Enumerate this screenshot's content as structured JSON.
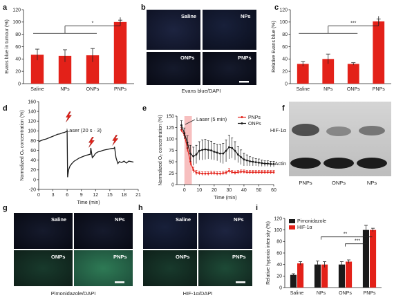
{
  "colors": {
    "red": "#e32119",
    "black": "#1a1a1a",
    "laser_band": "#f4a9a9"
  },
  "panels": {
    "a": {
      "label": "a"
    },
    "b": {
      "label": "b",
      "tiles": [
        "Saline",
        "NPs",
        "ONPs",
        "PNPs"
      ],
      "caption": "Evans blue/DAPI"
    },
    "c": {
      "label": "c"
    },
    "d": {
      "label": "d",
      "annotation": "Laser (20 s · 3)"
    },
    "e": {
      "label": "e",
      "annotation": "Laser (5 min)"
    },
    "f": {
      "label": "f",
      "rows": [
        "HIF-1α",
        "Actin"
      ],
      "columns": [
        "PNPs",
        "ONPs",
        "NPs"
      ]
    },
    "g": {
      "label": "g",
      "tiles": [
        "Saline",
        "NPs",
        "ONPs",
        "PNPs"
      ],
      "caption": "Pimonidazole/DAPI"
    },
    "h": {
      "label": "h",
      "tiles": [
        "Saline",
        "NPs",
        "ONPs",
        "PNPs"
      ],
      "caption": "HIF-1α/DAPI"
    },
    "i": {
      "label": "i"
    }
  },
  "chart_data": [
    {
      "id": "a",
      "type": "bar",
      "categories": [
        "Saline",
        "NPs",
        "ONPs",
        "PNPs"
      ],
      "values": [
        47,
        45,
        46,
        100
      ],
      "errors": [
        9,
        10,
        11,
        3
      ],
      "ylabel": "Evans blue in tumour (%)",
      "ylim": [
        0,
        120
      ],
      "yticks": [
        0,
        20,
        40,
        60,
        80,
        100,
        120
      ],
      "significance": "*"
    },
    {
      "id": "c",
      "type": "bar",
      "categories": [
        "Saline",
        "NPs",
        "ONPs",
        "PNPs"
      ],
      "values": [
        32,
        40,
        32,
        101
      ],
      "errors": [
        4,
        8,
        2,
        4
      ],
      "ylabel": "Relative Evans blue (%)",
      "ylim": [
        0,
        120
      ],
      "yticks": [
        0,
        20,
        40,
        60,
        80,
        100,
        120
      ],
      "significance": "***"
    },
    {
      "id": "d",
      "type": "line",
      "xlabel": "Time (min)",
      "ylabel": "Normalized O₂ concentration (%)",
      "xlim": [
        0,
        21
      ],
      "ylim": [
        -20,
        160
      ],
      "xticks": [
        0,
        3,
        6,
        9,
        12,
        15,
        18,
        21
      ],
      "yticks": [
        -20,
        0,
        20,
        40,
        60,
        80,
        100,
        120,
        140,
        160
      ],
      "laser_times": [
        6.2,
        11.0,
        16.0
      ],
      "series": [
        {
          "x": [
            0,
            0.5,
            1,
            1.5,
            2,
            2.5,
            3,
            3.5,
            4,
            4.5,
            5,
            5.5,
            5.9,
            6.0,
            6.1,
            6.3,
            6.6,
            7,
            7.5,
            8,
            8.5,
            9,
            9.5,
            10,
            10.5,
            10.8,
            10.9,
            11.0,
            11.3,
            11.6,
            12,
            12.5,
            13,
            13.5,
            14,
            14.5,
            15,
            15.5,
            15.8,
            15.9,
            16.0,
            16.3,
            16.7,
            17,
            17.5,
            18,
            18.5,
            19,
            19.5,
            20
          ],
          "y": [
            78,
            80,
            82,
            83,
            85,
            87,
            89,
            91,
            93,
            94,
            96,
            97,
            99,
            100,
            5,
            20,
            28,
            33,
            38,
            41,
            44,
            46,
            48,
            50,
            51,
            52,
            52,
            65,
            45,
            48,
            54,
            57,
            58,
            60,
            61,
            62,
            63,
            64,
            64,
            64,
            67,
            45,
            33,
            37,
            35,
            38,
            34,
            38,
            37,
            36
          ]
        }
      ]
    },
    {
      "id": "e",
      "type": "line",
      "xlabel": "Time (min)",
      "ylabel": "Normalized O₂ concentration (%)",
      "xlim": [
        -5,
        60
      ],
      "ylim": [
        0,
        150
      ],
      "xticks": [
        0,
        10,
        20,
        30,
        40,
        50,
        60
      ],
      "yticks": [
        0,
        25,
        50,
        75,
        100,
        125,
        150
      ],
      "laser_band": [
        0,
        5
      ],
      "series": [
        {
          "name": "PNPs",
          "color": "#e32119",
          "x": [
            -2,
            0,
            2,
            4,
            6,
            8,
            10,
            12,
            14,
            16,
            18,
            20,
            22,
            24,
            26,
            28,
            30,
            32,
            34,
            36,
            38,
            40,
            42,
            44,
            46,
            48,
            50,
            52,
            54,
            56,
            58,
            60
          ],
          "y": [
            120,
            108,
            80,
            50,
            32,
            26,
            25,
            24,
            24,
            24,
            25,
            25,
            24,
            24,
            25,
            26,
            30,
            27,
            26,
            27,
            28,
            28,
            27,
            27,
            27,
            27,
            27,
            27,
            27,
            27,
            27,
            27
          ],
          "err": [
            5,
            6,
            8,
            8,
            6,
            5,
            4,
            4,
            4,
            4,
            4,
            4,
            4,
            4,
            4,
            4,
            5,
            4,
            4,
            4,
            4,
            4,
            4,
            4,
            4,
            4,
            4,
            4,
            4,
            4,
            4,
            4
          ]
        },
        {
          "name": "ONPs",
          "color": "#1a1a1a",
          "x": [
            -2,
            0,
            2,
            4,
            6,
            8,
            10,
            12,
            14,
            16,
            18,
            20,
            22,
            24,
            26,
            28,
            30,
            32,
            34,
            36,
            38,
            40,
            42,
            44,
            46,
            48,
            50,
            52,
            54,
            56,
            58,
            60
          ],
          "y": [
            130,
            112,
            92,
            68,
            62,
            66,
            74,
            76,
            77,
            76,
            75,
            72,
            70,
            68,
            68,
            74,
            82,
            80,
            74,
            66,
            60,
            55,
            53,
            51,
            50,
            49,
            48,
            47,
            46,
            46,
            45,
            45
          ],
          "err": [
            10,
            12,
            15,
            18,
            20,
            20,
            20,
            22,
            22,
            20,
            20,
            18,
            18,
            20,
            22,
            24,
            26,
            22,
            20,
            18,
            16,
            14,
            12,
            10,
            9,
            8,
            8,
            7,
            6,
            6,
            6,
            6
          ]
        }
      ]
    },
    {
      "id": "i",
      "type": "bar",
      "categories": [
        "Saline",
        "NPs",
        "ONPs",
        "PNPs"
      ],
      "ylabel": "Relative hypoxia intensity (%)",
      "ylim": [
        0,
        120
      ],
      "yticks": [
        0,
        20,
        40,
        60,
        80,
        100,
        120
      ],
      "series": [
        {
          "name": "Pimonidazole",
          "color": "#1a1a1a",
          "values": [
            22,
            40,
            40,
            100
          ],
          "err": [
            2,
            6,
            5,
            8
          ]
        },
        {
          "name": "HIF-1α",
          "color": "#e32119",
          "values": [
            42,
            40,
            45,
            100
          ],
          "err": [
            3,
            5,
            3,
            3
          ]
        }
      ],
      "significance": [
        "**",
        "***"
      ]
    }
  ]
}
